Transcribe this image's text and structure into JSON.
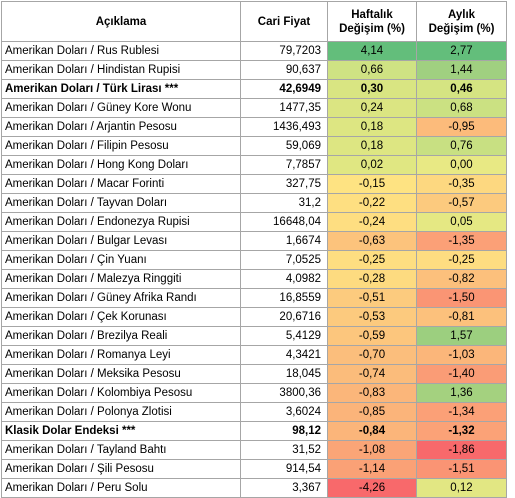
{
  "headers": {
    "name": "Açıklama",
    "price": "Cari Fiyat",
    "weekly_line1": "Haftalık",
    "weekly_line2": "Değişim (%)",
    "monthly_line1": "Aylık",
    "monthly_line2": "Değişim (%)"
  },
  "rows": [
    {
      "name": "Amerikan Doları / Rus Rublesi",
      "price": "79,7203",
      "weekly": "4,14",
      "monthly": "2,77",
      "weekly_color": "#63be7b",
      "monthly_color": "#63be7b",
      "bold": false
    },
    {
      "name": "Amerikan Doları / Hindistan Rupisi",
      "price": "90,637",
      "weekly": "0,66",
      "monthly": "1,44",
      "weekly_color": "#cfe283",
      "monthly_color": "#a0d080",
      "bold": false
    },
    {
      "name": "Amerikan Doları / Türk Lirası ***",
      "price": "42,6949",
      "weekly": "0,30",
      "monthly": "0,46",
      "weekly_color": "#d9e582",
      "monthly_color": "#d5e482",
      "bold": true
    },
    {
      "name": "Amerikan Doları / Güney Kore Wonu",
      "price": "1477,35",
      "weekly": "0,24",
      "monthly": "0,68",
      "weekly_color": "#dbe582",
      "monthly_color": "#cbe182",
      "bold": false
    },
    {
      "name": "Amerikan Doları / Arjantin Pesosu",
      "price": "1436,493",
      "weekly": "0,18",
      "monthly": "-0,95",
      "weekly_color": "#dde682",
      "monthly_color": "#fcbb7b",
      "bold": false
    },
    {
      "name": "Amerikan Doları / Filipin Pesosu",
      "price": "59,069",
      "weekly": "0,18",
      "monthly": "0,76",
      "weekly_color": "#dde682",
      "monthly_color": "#c8e082",
      "bold": false
    },
    {
      "name": "Amerikan Doları / Hong Kong Doları",
      "price": "7,7857",
      "weekly": "0,02",
      "monthly": "0,00",
      "weekly_color": "#e0e782",
      "monthly_color": "#e8e984",
      "bold": false
    },
    {
      "name": "Amerikan Doları / Macar Forinti",
      "price": "327,75",
      "weekly": "-0,15",
      "monthly": "-0,35",
      "weekly_color": "#fee382",
      "monthly_color": "#fdd880",
      "bold": false
    },
    {
      "name": "Amerikan Doları / Tayvan Doları",
      "price": "31,2",
      "weekly": "-0,22",
      "monthly": "-0,57",
      "weekly_color": "#fedf81",
      "monthly_color": "#fcca7e",
      "bold": false
    },
    {
      "name": "Amerikan Doları / Endonezya Rupisi",
      "price": "16648,04",
      "weekly": "-0,24",
      "monthly": "0,05",
      "weekly_color": "#fede81",
      "monthly_color": "#e5e883",
      "bold": false
    },
    {
      "name": "Amerikan Doları / Bulgar Levası",
      "price": "1,6674",
      "weekly": "-0,63",
      "monthly": "-1,35",
      "weekly_color": "#fcc37c",
      "monthly_color": "#fba077",
      "bold": false
    },
    {
      "name": "Amerikan Doları / Çin Yuanı",
      "price": "7,0525",
      "weekly": "-0,25",
      "monthly": "-0,25",
      "weekly_color": "#fede81",
      "monthly_color": "#fedd81",
      "bold": false
    },
    {
      "name": "Amerikan Doları / Malezya Ringgiti",
      "price": "4,0982",
      "weekly": "-0,28",
      "monthly": "-0,82",
      "weekly_color": "#fddb80",
      "monthly_color": "#fcc07c",
      "bold": false
    },
    {
      "name": "Amerikan Doları / Güney Afrika Randı",
      "price": "16,8559",
      "weekly": "-0,51",
      "monthly": "-1,50",
      "weekly_color": "#fccb7e",
      "monthly_color": "#fa9574",
      "bold": false
    },
    {
      "name": "Amerikan Doları / Çek Korunası",
      "price": "20,6716",
      "weekly": "-0,53",
      "monthly": "-0,81",
      "weekly_color": "#fcca7e",
      "monthly_color": "#fcc17c",
      "bold": false
    },
    {
      "name": "Amerikan Doları / Brezilya Reali",
      "price": "5,4129",
      "weekly": "-0,59",
      "monthly": "1,57",
      "weekly_color": "#fcc67d",
      "monthly_color": "#9ccf7f",
      "bold": false
    },
    {
      "name": "Amerikan Doları / Romanya Leyi",
      "price": "4,3421",
      "weekly": "-0,70",
      "monthly": "-1,03",
      "weekly_color": "#fbbe7c",
      "monthly_color": "#fbb67a",
      "bold": false
    },
    {
      "name": "Amerikan Doları / Meksika Pesosu",
      "price": "18,045",
      "weekly": "-0,74",
      "monthly": "-1,40",
      "weekly_color": "#fbbc7b",
      "monthly_color": "#fa9c76",
      "bold": false
    },
    {
      "name": "Amerikan Doları / Kolombiya Pesosu",
      "price": "3800,36",
      "weekly": "-0,83",
      "monthly": "1,36",
      "weekly_color": "#fbb67a",
      "monthly_color": "#a4d17f",
      "bold": false
    },
    {
      "name": "Amerikan Doları / Polonya Zlotisi",
      "price": "3,6024",
      "weekly": "-0,85",
      "monthly": "-1,34",
      "weekly_color": "#fbb47a",
      "monthly_color": "#fba077",
      "bold": false
    },
    {
      "name": "Klasik Dolar Endeksi ***",
      "price": "98,12",
      "weekly": "-0,84",
      "monthly": "-1,32",
      "weekly_color": "#fbb57a",
      "monthly_color": "#fba277",
      "bold": true
    },
    {
      "name": "Amerikan Doları / Tayland Bahtı",
      "price": "31,52",
      "weekly": "-1,08",
      "monthly": "-1,86",
      "weekly_color": "#faa577",
      "monthly_color": "#f8696b",
      "bold": false
    },
    {
      "name": "Amerikan Doları / Şili Pesosu",
      "price": "914,54",
      "weekly": "-1,14",
      "monthly": "-1,51",
      "weekly_color": "#faa176",
      "monthly_color": "#fa9474",
      "bold": false
    },
    {
      "name": "Amerikan Doları / Peru Solu",
      "price": "3,367",
      "weekly": "-4,26",
      "monthly": "0,12",
      "weekly_color": "#f8696b",
      "monthly_color": "#e2e783",
      "bold": false
    }
  ]
}
